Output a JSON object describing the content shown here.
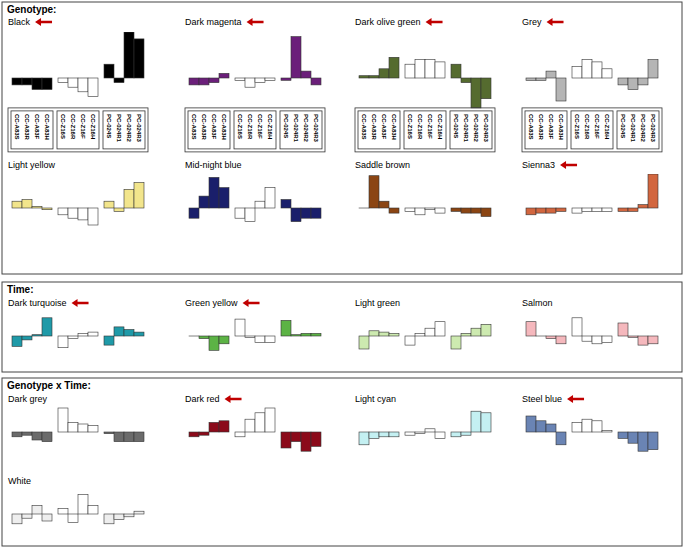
{
  "panels": [
    "Genotype:",
    "Time:",
    "Genotype x Time:"
  ],
  "chart_data": [
    {
      "type": "bar",
      "title": "Black",
      "marker": "arrow",
      "tick_labels": "x",
      "categories": [
        "CC-A83S",
        "CC-A83R",
        "CC-A83F",
        "CC-A83H",
        "CC-Z16S",
        "CC-Z16R",
        "CC-Z16F",
        "CC-Z16H",
        "PC-024S",
        "PC-024R1",
        "PC-024R2",
        "PC-024R3"
      ],
      "values": [
        -0.15,
        -0.15,
        -0.25,
        -0.25,
        -0.1,
        -0.2,
        -0.3,
        -0.4,
        0.3,
        -0.1,
        1.0,
        0.85
      ],
      "colors": [
        "#000000",
        "#000000",
        "#000000",
        "#000000",
        "#ffffff",
        "#ffffff",
        "#ffffff",
        "#ffffff",
        "#000000",
        "#000000",
        "#000000",
        "#000000"
      ],
      "ylim": [
        -1,
        1
      ]
    },
    {
      "type": "bar",
      "title": "Dark magenta",
      "marker": "arrow",
      "tick_labels": "x",
      "categories": [
        "CC-A83S",
        "CC-A83R",
        "CC-A83F",
        "CC-A83H",
        "CC-Z16S",
        "CC-Z16R",
        "CC-Z16F",
        "CC-Z16H",
        "PC-024S",
        "PC-024R1",
        "PC-024R2",
        "PC-024R3"
      ],
      "values": [
        -0.15,
        -0.15,
        -0.1,
        0.1,
        -0.05,
        -0.2,
        -0.1,
        -0.05,
        -0.05,
        0.9,
        0.15,
        -0.15
      ],
      "colors": [
        "#6b1f7a",
        "#6b1f7a",
        "#6b1f7a",
        "#6b1f7a",
        "#ffffff",
        "#ffffff",
        "#ffffff",
        "#ffffff",
        "#6b1f7a",
        "#6b1f7a",
        "#6b1f7a",
        "#6b1f7a"
      ],
      "ylim": [
        -1,
        1
      ]
    },
    {
      "type": "bar",
      "title": "Dark olive green",
      "marker": "arrow",
      "tick_labels": "x",
      "categories": [
        "CC-A83S",
        "CC-A83R",
        "CC-A83F",
        "CC-A83H",
        "CC-Z16S",
        "CC-Z16R",
        "CC-Z16F",
        "CC-Z16H",
        "PC-024S",
        "PC-024R1",
        "PC-024R2",
        "PC-024R3"
      ],
      "values": [
        0.05,
        0.05,
        0.2,
        0.45,
        0.3,
        0.4,
        0.4,
        0.35,
        0.3,
        -0.1,
        -0.65,
        -0.45
      ],
      "colors": [
        "#556b2f",
        "#556b2f",
        "#556b2f",
        "#556b2f",
        "#ffffff",
        "#ffffff",
        "#ffffff",
        "#ffffff",
        "#556b2f",
        "#556b2f",
        "#556b2f",
        "#556b2f"
      ],
      "ylim": [
        -1,
        1
      ]
    },
    {
      "type": "bar",
      "title": "Grey",
      "marker": "arrow",
      "tick_labels": "x",
      "categories": [
        "CC-A83S",
        "CC-A83R",
        "CC-A83F",
        "CC-A83H",
        "CC-Z16S",
        "CC-Z16R",
        "CC-Z16F",
        "CC-Z16H",
        "PC-024S",
        "PC-024R1",
        "PC-024R2",
        "PC-024R3"
      ],
      "values": [
        -0.05,
        -0.05,
        0.15,
        -0.5,
        0.25,
        0.4,
        0.35,
        0.2,
        -0.15,
        -0.25,
        -0.15,
        0.4
      ],
      "colors": [
        "#b5b5b5",
        "#b5b5b5",
        "#b5b5b5",
        "#b5b5b5",
        "#ffffff",
        "#ffffff",
        "#ffffff",
        "#ffffff",
        "#b5b5b5",
        "#b5b5b5",
        "#b5b5b5",
        "#b5b5b5"
      ],
      "ylim": [
        -1,
        1
      ]
    },
    {
      "type": "bar",
      "title": "Light yellow",
      "tick_labels": false,
      "categories": [
        null,
        null,
        null,
        null,
        null,
        null,
        null,
        null,
        null,
        null,
        null,
        null
      ],
      "values": [
        0.2,
        0.25,
        0.05,
        -0.05,
        -0.2,
        -0.3,
        -0.35,
        -0.5,
        0.2,
        -0.1,
        0.55,
        0.75
      ],
      "colors": [
        "#f2e58c",
        "#f2e58c",
        "#f2e58c",
        "#f2e58c",
        "#ffffff",
        "#ffffff",
        "#ffffff",
        "#ffffff",
        "#f2e58c",
        "#f2e58c",
        "#f2e58c",
        "#f2e58c"
      ],
      "ylim": [
        -1,
        1
      ]
    },
    {
      "type": "bar",
      "title": "Mid-night blue",
      "tick_labels": false,
      "categories": [
        null,
        null,
        null,
        null,
        null,
        null,
        null,
        null,
        null,
        null,
        null,
        null
      ],
      "values": [
        -0.3,
        0.35,
        0.9,
        0.6,
        -0.3,
        -0.4,
        0.2,
        0.6,
        0.25,
        -0.4,
        -0.3,
        -0.3
      ],
      "colors": [
        "#1a1f6b",
        "#1a1f6b",
        "#1a1f6b",
        "#1a1f6b",
        "#ffffff",
        "#ffffff",
        "#ffffff",
        "#ffffff",
        "#1a1f6b",
        "#1a1f6b",
        "#1a1f6b",
        "#1a1f6b"
      ],
      "ylim": [
        -1,
        1
      ]
    },
    {
      "type": "bar",
      "title": "Saddle brown",
      "tick_labels": false,
      "categories": [
        null,
        null,
        null,
        null,
        null,
        null,
        null,
        null,
        null,
        null,
        null,
        null
      ],
      "values": [
        0.0,
        0.95,
        0.2,
        -0.15,
        -0.1,
        -0.2,
        -0.05,
        -0.15,
        -0.1,
        -0.15,
        -0.15,
        -0.25
      ],
      "colors": [
        "#8b4513",
        "#8b4513",
        "#8b4513",
        "#8b4513",
        "#ffffff",
        "#ffffff",
        "#ffffff",
        "#ffffff",
        "#8b4513",
        "#8b4513",
        "#8b4513",
        "#8b4513"
      ],
      "ylim": [
        -1,
        1
      ]
    },
    {
      "type": "bar",
      "title": "Sienna3",
      "marker": "arrow",
      "tick_labels": false,
      "categories": [
        null,
        null,
        null,
        null,
        null,
        null,
        null,
        null,
        null,
        null,
        null,
        null
      ],
      "values": [
        -0.2,
        -0.15,
        -0.15,
        -0.1,
        -0.15,
        -0.1,
        -0.1,
        -0.1,
        -0.1,
        -0.1,
        0.1,
        1.0
      ],
      "colors": [
        "#d2663f",
        "#d2663f",
        "#d2663f",
        "#d2663f",
        "#ffffff",
        "#ffffff",
        "#ffffff",
        "#ffffff",
        "#d2663f",
        "#d2663f",
        "#d2663f",
        "#d2663f"
      ],
      "ylim": [
        -1,
        1
      ]
    },
    {
      "type": "bar",
      "title": "Dark turquoise",
      "marker": "arrow",
      "tick_labels": false,
      "categories": [
        null,
        null,
        null,
        null,
        null,
        null,
        null,
        null,
        null,
        null,
        null,
        null
      ],
      "values": [
        -0.4,
        -0.15,
        0.05,
        0.7,
        -0.45,
        -0.1,
        0.1,
        0.15,
        -0.35,
        0.35,
        0.25,
        0.15
      ],
      "colors": [
        "#1f9aa8",
        "#1f9aa8",
        "#1f9aa8",
        "#1f9aa8",
        "#ffffff",
        "#ffffff",
        "#ffffff",
        "#ffffff",
        "#1f9aa8",
        "#1f9aa8",
        "#1f9aa8",
        "#1f9aa8"
      ],
      "ylim": [
        -1,
        1
      ]
    },
    {
      "type": "bar",
      "title": "Green yellow",
      "marker": "arrow",
      "tick_labels": false,
      "categories": [
        null,
        null,
        null,
        null,
        null,
        null,
        null,
        null,
        null,
        null,
        null,
        null
      ],
      "values": [
        0.0,
        -0.1,
        -0.55,
        -0.3,
        0.65,
        -0.05,
        -0.25,
        -0.25,
        0.6,
        0.05,
        0.1,
        0.1
      ],
      "colors": [
        "#5cb345",
        "#5cb345",
        "#5cb345",
        "#5cb345",
        "#ffffff",
        "#ffffff",
        "#ffffff",
        "#ffffff",
        "#5cb345",
        "#5cb345",
        "#5cb345",
        "#5cb345"
      ],
      "ylim": [
        -1,
        1
      ]
    },
    {
      "type": "bar",
      "title": "Light green",
      "tick_labels": false,
      "categories": [
        null,
        null,
        null,
        null,
        null,
        null,
        null,
        null,
        null,
        null,
        null,
        null
      ],
      "values": [
        -0.5,
        0.2,
        0.15,
        0.1,
        -0.35,
        0.1,
        0.3,
        0.55,
        -0.5,
        0.1,
        0.3,
        0.45
      ],
      "colors": [
        "#cdeab0",
        "#cdeab0",
        "#cdeab0",
        "#cdeab0",
        "#ffffff",
        "#ffffff",
        "#ffffff",
        "#ffffff",
        "#cdeab0",
        "#cdeab0",
        "#cdeab0",
        "#cdeab0"
      ],
      "ylim": [
        -1,
        1
      ]
    },
    {
      "type": "bar",
      "title": "Salmon",
      "tick_labels": false,
      "categories": [
        null,
        null,
        null,
        null,
        null,
        null,
        null,
        null,
        null,
        null,
        null,
        null
      ],
      "values": [
        0.55,
        0.0,
        -0.1,
        -0.3,
        0.7,
        -0.2,
        -0.3,
        -0.25,
        0.5,
        -0.05,
        -0.35,
        -0.3
      ],
      "colors": [
        "#f5b8bd",
        "#f5b8bd",
        "#f5b8bd",
        "#f5b8bd",
        "#ffffff",
        "#ffffff",
        "#ffffff",
        "#ffffff",
        "#f5b8bd",
        "#f5b8bd",
        "#f5b8bd",
        "#f5b8bd"
      ],
      "ylim": [
        -1,
        1
      ]
    },
    {
      "type": "bar",
      "title": "Dark grey",
      "tick_labels": false,
      "categories": [
        null,
        null,
        null,
        null,
        null,
        null,
        null,
        null,
        null,
        null,
        null,
        null
      ],
      "values": [
        -0.15,
        -0.1,
        -0.25,
        -0.3,
        0.75,
        0.3,
        0.25,
        0.2,
        -0.05,
        -0.3,
        -0.3,
        -0.3
      ],
      "colors": [
        "#6b6b6b",
        "#6b6b6b",
        "#6b6b6b",
        "#6b6b6b",
        "#ffffff",
        "#ffffff",
        "#ffffff",
        "#ffffff",
        "#6b6b6b",
        "#6b6b6b",
        "#6b6b6b",
        "#6b6b6b"
      ],
      "ylim": [
        -1,
        1
      ]
    },
    {
      "type": "bar",
      "title": "Dark red",
      "marker": "arrow",
      "tick_labels": false,
      "categories": [
        null,
        null,
        null,
        null,
        null,
        null,
        null,
        null,
        null,
        null,
        null,
        null
      ],
      "values": [
        -0.15,
        -0.1,
        0.3,
        0.35,
        -0.15,
        0.4,
        0.6,
        0.75,
        -0.5,
        -0.3,
        -0.6,
        -0.45
      ],
      "colors": [
        "#8b0a1a",
        "#8b0a1a",
        "#8b0a1a",
        "#8b0a1a",
        "#ffffff",
        "#ffffff",
        "#ffffff",
        "#ffffff",
        "#8b0a1a",
        "#8b0a1a",
        "#8b0a1a",
        "#8b0a1a"
      ],
      "ylim": [
        -1,
        1
      ]
    },
    {
      "type": "bar",
      "title": "Light cyan",
      "tick_labels": false,
      "categories": [
        null,
        null,
        null,
        null,
        null,
        null,
        null,
        null,
        null,
        null,
        null,
        null
      ],
      "values": [
        -0.4,
        -0.2,
        -0.15,
        -0.15,
        -0.1,
        -0.05,
        0.1,
        -0.2,
        -0.15,
        -0.1,
        0.65,
        0.6
      ],
      "colors": [
        "#c4f0f2",
        "#c4f0f2",
        "#c4f0f2",
        "#c4f0f2",
        "#ffffff",
        "#ffffff",
        "#ffffff",
        "#ffffff",
        "#c4f0f2",
        "#c4f0f2",
        "#c4f0f2",
        "#c4f0f2"
      ],
      "ylim": [
        -1,
        1
      ]
    },
    {
      "type": "bar",
      "title": "Steel blue",
      "marker": "arrow",
      "tick_labels": false,
      "categories": [
        null,
        null,
        null,
        null,
        null,
        null,
        null,
        null,
        null,
        null,
        null,
        null
      ],
      "values": [
        0.5,
        0.35,
        0.25,
        -0.4,
        0.3,
        0.4,
        0.35,
        0.05,
        -0.2,
        -0.35,
        -0.6,
        -0.55
      ],
      "colors": [
        "#6a84b4",
        "#6a84b4",
        "#6a84b4",
        "#6a84b4",
        "#ffffff",
        "#ffffff",
        "#ffffff",
        "#ffffff",
        "#6a84b4",
        "#6a84b4",
        "#6a84b4",
        "#6a84b4"
      ],
      "ylim": [
        -1,
        1
      ]
    },
    {
      "type": "bar",
      "title": "White",
      "tick_labels": false,
      "categories": [
        null,
        null,
        null,
        null,
        null,
        null,
        null,
        null,
        null,
        null,
        null,
        null
      ],
      "values": [
        -0.35,
        -0.15,
        0.3,
        -0.25,
        0.2,
        -0.3,
        0.7,
        0.3,
        -0.35,
        -0.2,
        -0.1,
        0.1
      ],
      "colors": [
        "#eeeeee",
        "#eeeeee",
        "#eeeeee",
        "#eeeeee",
        "#ffffff",
        "#ffffff",
        "#ffffff",
        "#ffffff",
        "#eeeeee",
        "#eeeeee",
        "#eeeeee",
        "#eeeeee"
      ],
      "ylim": [
        -1,
        1
      ]
    }
  ]
}
